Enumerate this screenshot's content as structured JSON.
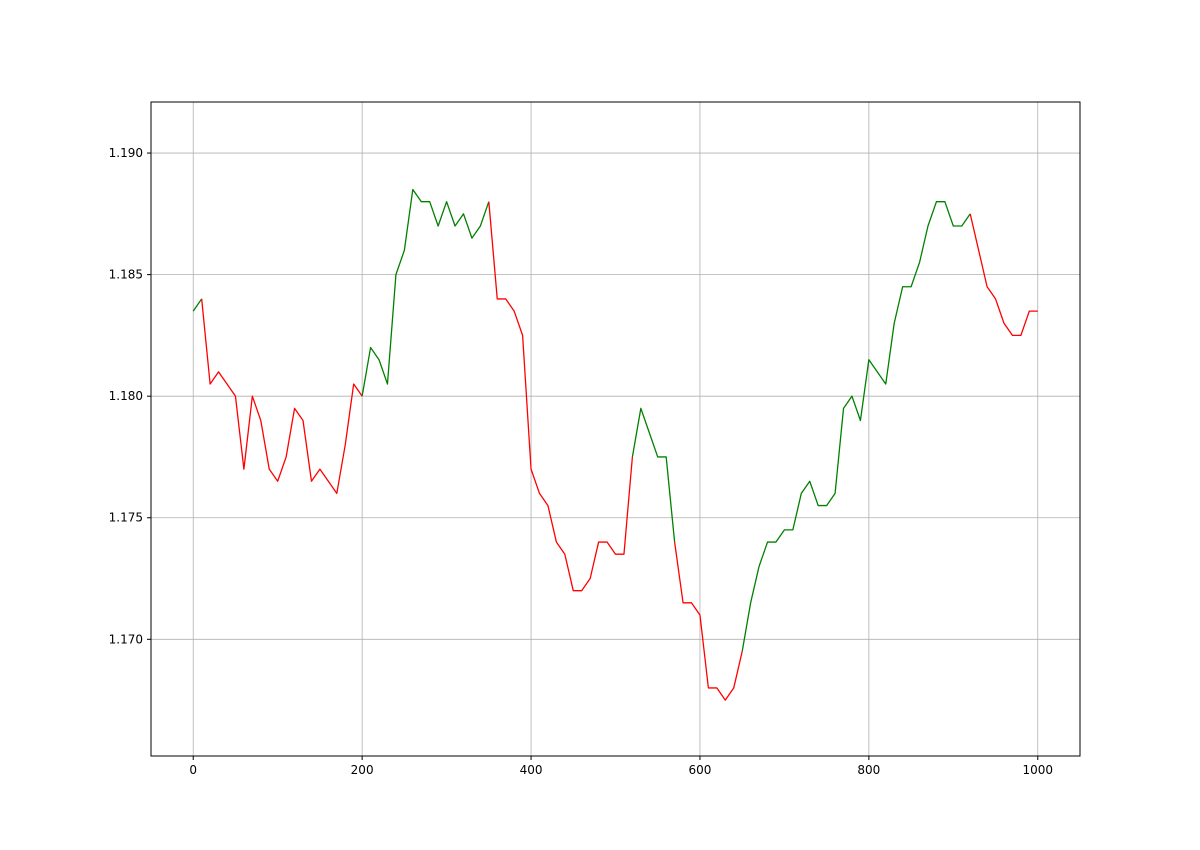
{
  "chart_data": {
    "type": "line",
    "x": [
      0,
      10,
      20,
      30,
      40,
      50,
      60,
      70,
      80,
      90,
      100,
      110,
      120,
      130,
      140,
      150,
      160,
      170,
      180,
      190,
      200,
      210,
      220,
      230,
      240,
      250,
      260,
      270,
      280,
      290,
      300,
      310,
      320,
      330,
      340,
      350,
      360,
      370,
      380,
      390,
      400,
      410,
      420,
      430,
      440,
      450,
      460,
      470,
      480,
      490,
      500,
      510,
      520,
      530,
      540,
      550,
      560,
      570,
      580,
      590,
      600,
      610,
      620,
      630,
      640,
      650,
      660,
      670,
      680,
      690,
      700,
      710,
      720,
      730,
      740,
      750,
      760,
      770,
      780,
      790,
      800,
      810,
      820,
      830,
      840,
      850,
      860,
      870,
      880,
      890,
      900,
      910,
      920,
      930,
      940,
      950,
      960,
      970,
      980,
      990,
      1000
    ],
    "series": [
      {
        "color": "#008000",
        "values": [
          1.1835,
          1.184,
          null,
          null,
          null,
          null,
          null,
          null,
          null,
          null,
          null,
          null,
          null,
          null,
          null,
          null,
          null,
          null,
          null,
          null,
          1.18,
          1.182,
          1.1815,
          1.1805,
          1.185,
          1.186,
          1.1885,
          1.188,
          1.188,
          1.187,
          1.188,
          1.187,
          1.1875,
          1.1865,
          1.187,
          1.188,
          null,
          null,
          null,
          null,
          null,
          null,
          null,
          null,
          null,
          null,
          null,
          null,
          null,
          null,
          null,
          null,
          1.1775,
          1.1795,
          1.1785,
          1.1775,
          1.1775,
          1.174,
          null,
          null,
          null,
          null,
          null,
          null,
          null,
          1.1695,
          1.1715,
          1.173,
          1.174,
          1.174,
          1.1745,
          1.1745,
          1.176,
          1.1765,
          1.1755,
          1.1755,
          1.176,
          1.1795,
          1.18,
          1.179,
          1.1815,
          1.181,
          1.1805,
          1.183,
          1.1845,
          1.1845,
          1.1855,
          1.187,
          1.188,
          1.188,
          1.187,
          1.187,
          1.1875,
          null,
          null,
          null,
          null,
          null,
          null,
          null,
          null
        ]
      },
      {
        "color": "#ff0000",
        "values": [
          null,
          1.184,
          1.1805,
          1.181,
          1.1805,
          1.18,
          1.177,
          1.18,
          1.179,
          1.177,
          1.1765,
          1.1775,
          1.1795,
          1.179,
          1.1765,
          1.177,
          1.1765,
          1.176,
          1.178,
          1.1805,
          1.18,
          null,
          null,
          null,
          null,
          null,
          null,
          null,
          null,
          null,
          null,
          null,
          null,
          null,
          null,
          1.188,
          1.184,
          1.184,
          1.1835,
          1.1825,
          1.177,
          1.176,
          1.1755,
          1.174,
          1.1735,
          1.172,
          1.172,
          1.1725,
          1.174,
          1.174,
          1.1735,
          1.1735,
          1.1775,
          null,
          null,
          null,
          null,
          1.174,
          1.1715,
          1.1715,
          1.171,
          1.168,
          1.168,
          1.1675,
          1.168,
          1.1695,
          null,
          null,
          null,
          null,
          null,
          null,
          null,
          null,
          null,
          null,
          null,
          null,
          null,
          null,
          null,
          null,
          null,
          null,
          null,
          null,
          null,
          null,
          null,
          null,
          null,
          null,
          1.1875,
          1.186,
          1.1845,
          1.184,
          1.183,
          1.1825,
          1.1825,
          1.1835,
          1.1835
        ]
      }
    ],
    "xlim": [
      -50,
      1050
    ],
    "xticks": [
      0,
      200,
      400,
      600,
      800,
      1000
    ],
    "ylim": [
      1.1652,
      1.1921
    ],
    "yticks": [
      {
        "value": 1.17,
        "label": "1.170"
      },
      1.175,
      {
        "value": 1.18,
        "label": "1.180"
      },
      1.185,
      {
        "value": 1.19,
        "label": "1.190"
      }
    ],
    "grid": true
  }
}
